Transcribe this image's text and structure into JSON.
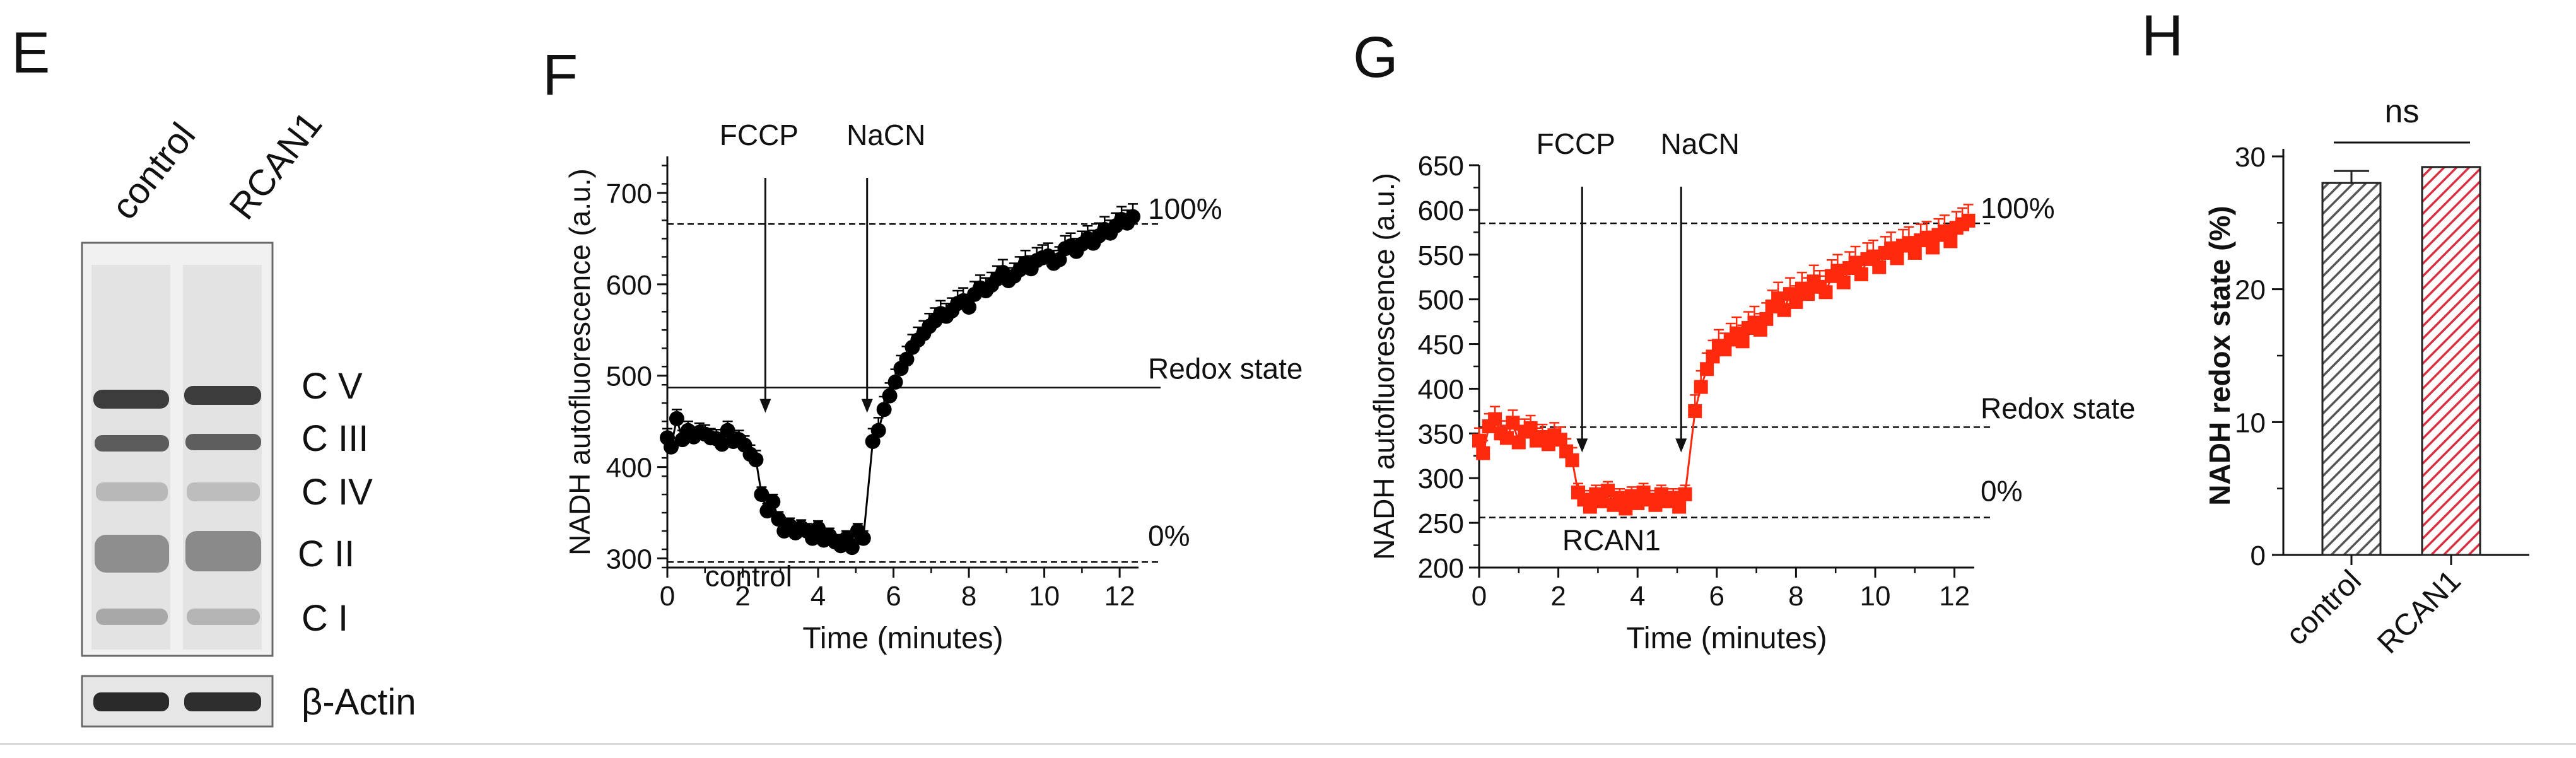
{
  "panels": {
    "E": {
      "letter": "E",
      "lanes": [
        "control",
        "RCAN1"
      ],
      "bands": [
        "C V",
        "C III",
        "C IV",
        "C II",
        "C I"
      ],
      "loading_control": "β-Actin"
    },
    "F": {
      "letter": "F"
    },
    "G": {
      "letter": "G"
    },
    "H": {
      "letter": "H"
    }
  },
  "chart_data": [
    {
      "id": "F",
      "type": "scatter",
      "color": "#000000",
      "marker": "circle",
      "xlabel": "Time (minutes)",
      "ylabel": "NADH autofluorescence (a.u.)",
      "xlim": [
        0,
        12.5
      ],
      "ylim": [
        290,
        740
      ],
      "xticks": [
        0,
        2,
        4,
        6,
        8,
        10,
        12
      ],
      "yticks": [
        300,
        400,
        500,
        600,
        700
      ],
      "series_label": "control",
      "reference_lines": [
        {
          "label": "100%",
          "y": 666
        },
        {
          "label": "Redox state",
          "y": 487
        },
        {
          "label": "0%",
          "y": 296
        }
      ],
      "annotations": [
        {
          "label": "FCCP",
          "x": 2.6
        },
        {
          "label": "NaCN",
          "x": 5.3
        }
      ],
      "segments": [
        {
          "x": [
            0.0,
            0.1,
            0.25,
            0.4,
            0.55,
            0.7,
            0.85,
            1.0,
            1.15,
            1.3,
            1.45,
            1.6,
            1.75,
            1.9,
            2.05,
            2.2,
            2.35
          ],
          "y": [
            432,
            422,
            453,
            430,
            440,
            433,
            438,
            436,
            432,
            431,
            425,
            440,
            428,
            430,
            424,
            414,
            408
          ],
          "err": 10
        },
        {
          "x": [
            2.5,
            2.65,
            2.8,
            2.95,
            3.1,
            3.25,
            3.4,
            3.55,
            3.7,
            3.85,
            4.0,
            4.15,
            4.3,
            4.45,
            4.6,
            4.75,
            4.9,
            5.05,
            5.2
          ],
          "y": [
            370,
            352,
            362,
            343,
            330,
            336,
            328,
            334,
            330,
            322,
            333,
            320,
            325,
            318,
            314,
            322,
            312,
            330,
            322
          ],
          "err": 8
        },
        {
          "x": [
            5.45,
            5.6,
            5.75,
            5.9,
            6.05,
            6.2,
            6.35,
            6.5,
            6.65,
            6.8,
            6.95,
            7.1,
            7.25,
            7.4,
            7.55,
            7.7,
            7.85,
            8.0,
            8.15,
            8.3,
            8.45,
            8.6,
            8.75,
            8.9,
            9.05,
            9.2,
            9.35,
            9.5,
            9.65,
            9.8,
            9.95,
            10.1,
            10.25,
            10.4,
            10.55,
            10.7,
            10.85,
            11.0,
            11.15,
            11.3,
            11.45,
            11.6,
            11.75,
            11.9,
            12.05,
            12.2,
            12.35
          ],
          "y": [
            428,
            440,
            463,
            478,
            493,
            508,
            518,
            531,
            539,
            546,
            554,
            560,
            568,
            565,
            571,
            579,
            582,
            575,
            589,
            596,
            593,
            599,
            606,
            613,
            604,
            609,
            616,
            623,
            617,
            626,
            629,
            631,
            623,
            627,
            639,
            642,
            636,
            644,
            650,
            645,
            653,
            660,
            656,
            664,
            671,
            667,
            674
          ],
          "err": 14
        }
      ]
    },
    {
      "id": "G",
      "type": "scatter",
      "color": "#ff2a0d",
      "marker": "square",
      "xlabel": "Time (minutes)",
      "ylabel": "NADH autofluorescence (a.u.)",
      "xlim": [
        0,
        12.5
      ],
      "ylim": [
        200,
        650
      ],
      "xticks": [
        0,
        2,
        4,
        6,
        8,
        10,
        12
      ],
      "yticks": [
        200,
        250,
        300,
        350,
        400,
        450,
        500,
        550,
        600,
        650
      ],
      "series_label": "RCAN1",
      "reference_lines": [
        {
          "label": "100%",
          "y": 585
        },
        {
          "label": "Redox state",
          "y": 357
        },
        {
          "label": "0%",
          "y": 256
        }
      ],
      "annotations": [
        {
          "label": "FCCP",
          "x": 2.6
        },
        {
          "label": "NaCN",
          "x": 5.1
        }
      ],
      "segments": [
        {
          "x": [
            0.0,
            0.1,
            0.25,
            0.4,
            0.55,
            0.7,
            0.85,
            1.0,
            1.15,
            1.3,
            1.45,
            1.6,
            1.75,
            1.9,
            2.05,
            2.2,
            2.35
          ],
          "y": [
            342,
            328,
            358,
            366,
            350,
            345,
            362,
            340,
            352,
            356,
            342,
            346,
            338,
            348,
            343,
            330,
            320
          ],
          "err": 14
        },
        {
          "x": [
            2.5,
            2.65,
            2.8,
            2.95,
            3.1,
            3.25,
            3.4,
            3.55,
            3.7,
            3.85,
            4.0,
            4.15,
            4.3,
            4.45,
            4.6,
            4.75,
            4.9,
            5.05,
            5.2
          ],
          "y": [
            284,
            276,
            268,
            282,
            274,
            286,
            270,
            278,
            266,
            280,
            272,
            284,
            276,
            270,
            282,
            274,
            278,
            268,
            282
          ],
          "err": 10
        },
        {
          "x": [
            5.45,
            5.6,
            5.75,
            5.9,
            6.05,
            6.2,
            6.35,
            6.5,
            6.65,
            6.8,
            6.95,
            7.1,
            7.25,
            7.4,
            7.55,
            7.7,
            7.85,
            8.0,
            8.15,
            8.3,
            8.45,
            8.6,
            8.75,
            8.9,
            9.05,
            9.2,
            9.35,
            9.5,
            9.65,
            9.8,
            9.95,
            10.1,
            10.25,
            10.4,
            10.55,
            10.7,
            10.85,
            11.0,
            11.15,
            11.3,
            11.45,
            11.6,
            11.75,
            11.9,
            12.05,
            12.2,
            12.35
          ],
          "y": [
            375,
            402,
            422,
            436,
            448,
            444,
            455,
            462,
            453,
            468,
            474,
            466,
            478,
            492,
            501,
            488,
            506,
            497,
            512,
            506,
            520,
            514,
            508,
            526,
            532,
            519,
            535,
            541,
            528,
            545,
            548,
            536,
            552,
            557,
            546,
            560,
            563,
            552,
            566,
            569,
            558,
            572,
            576,
            565,
            580,
            584,
            588
          ],
          "err": 18
        }
      ]
    },
    {
      "id": "H",
      "type": "bar",
      "ylabel": "NADH redox state (%)",
      "ylim": [
        0,
        30
      ],
      "yticks": [
        0,
        10,
        20,
        30
      ],
      "categories": [
        "control",
        "RCAN1"
      ],
      "values": [
        28.0,
        29.2
      ],
      "errors": [
        0.9,
        0.0
      ],
      "colors": [
        "#555555",
        "#d83040"
      ],
      "fill_pattern": "diagonal-hatch",
      "significance": "ns"
    }
  ]
}
